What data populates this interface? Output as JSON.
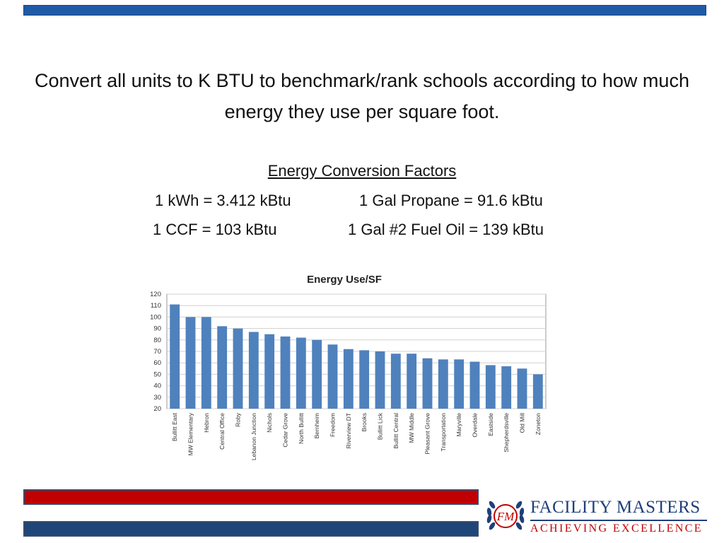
{
  "headline": "Convert all units to K BTU to benchmark/rank schools according to how much energy they use per square foot.",
  "factors": {
    "title": "Energy Conversion Factors",
    "kwh": "1 kWh = 3.412 kBtu",
    "propane": "1 Gal Propane = 91.6 kBtu",
    "ccf": "1 CCF = 103 kBtu",
    "fuel_oil": "1 Gal #2 Fuel Oil = 139 kBtu"
  },
  "brand": {
    "monogram": "FM",
    "name": "FACILITY MASTERS",
    "tagline": "ACHIEVING EXCELLENCE",
    "colors": {
      "blue": "#1f5aa6",
      "red": "#c00000",
      "navy": "#1f4678"
    }
  },
  "chart_data": {
    "type": "bar",
    "title": "Energy Use/SF",
    "xlabel": "",
    "ylabel": "",
    "ylim": [
      20,
      120
    ],
    "yticks": [
      20,
      30,
      40,
      50,
      60,
      70,
      80,
      90,
      100,
      110,
      120
    ],
    "grid": true,
    "legend": "none",
    "bar_color": "#4f81bd",
    "categories": [
      "Bullitt East",
      "MW Elementary",
      "Hebron",
      "Central Office",
      "Roby",
      "Lebanon Junction",
      "Nichols",
      "Cedar Grove",
      "North Bullitt",
      "Bernheim",
      "Freedom",
      "Riverview DT",
      "Brooks",
      "Bullitt Lick",
      "Bullitt Central",
      "MW Middle",
      "Pleasant Grove",
      "Transportation",
      "Maryville",
      "Overdale",
      "Eastside",
      "Shepherdsville",
      "Old Mill",
      "Zoneton"
    ],
    "values": [
      111,
      100,
      100,
      92,
      90,
      87,
      85,
      83,
      82,
      80,
      76,
      72,
      71,
      70,
      68,
      68,
      64,
      63,
      63,
      61,
      58,
      57,
      55,
      50
    ]
  }
}
